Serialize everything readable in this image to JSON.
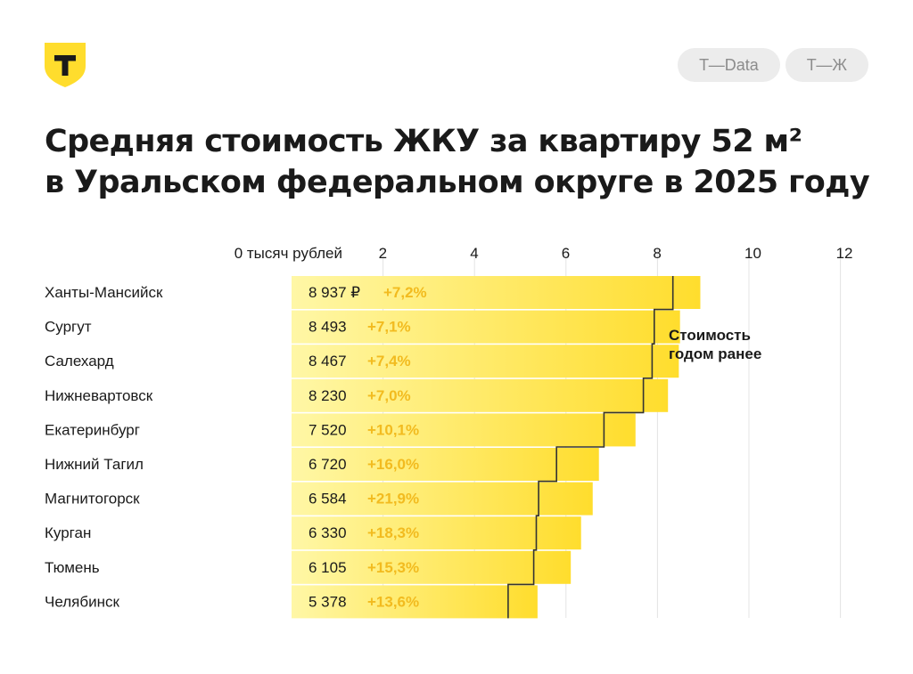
{
  "brand": {
    "logo_letter": "Т",
    "logo_color": "#ffdd2d"
  },
  "header": {
    "pills": [
      "Т—Data",
      "Т—Ж"
    ]
  },
  "title": {
    "line1": "Средняя стоимость ЖКУ за квартиру 52 м²",
    "line2": "в Уральском федеральном округе в 2025 году"
  },
  "chart_data": {
    "type": "bar",
    "orientation": "horizontal",
    "x_unit": "тысяч рублей",
    "xlim": [
      0,
      12
    ],
    "x_ticks": [
      0,
      2,
      4,
      6,
      8,
      10,
      12
    ],
    "x_tick_labels": [
      "0 тысяч рублей",
      "2",
      "4",
      "6",
      "8",
      "10",
      "12"
    ],
    "grid": true,
    "categories": [
      "Ханты-Мансийск",
      "Сургут",
      "Салехард",
      "Нижневартовск",
      "Екатеринбург",
      "Нижний Тагил",
      "Магнитогорск",
      "Курган",
      "Тюмень",
      "Челябинск"
    ],
    "values": [
      8937,
      8493,
      8467,
      8230,
      7520,
      6720,
      6584,
      6330,
      6105,
      5378
    ],
    "value_labels": [
      "8 937 ₽",
      "8 493",
      "8 467",
      "8 230",
      "7 520",
      "6 720",
      "6 584",
      "6 330",
      "6 105",
      "5 378"
    ],
    "change_labels": [
      "+7,2%",
      "+7,1%",
      "+7,4%",
      "+7,0%",
      "+10,1%",
      "+16,0%",
      "+21,9%",
      "+18,3%",
      "+15,3%",
      "+13,6%"
    ],
    "previous_year_values": [
      8337,
      7930,
      7884,
      7692,
      6830,
      5793,
      5401,
      5351,
      5295,
      4734
    ],
    "previous_year_label": [
      "Стоимость",
      "годом ранее"
    ],
    "colors": {
      "bar_start": "#fff7a6",
      "bar_end": "#ffdd2d",
      "change": "#f2bb1f",
      "step_line": "#333333",
      "grid": "#e4e4e4"
    }
  }
}
